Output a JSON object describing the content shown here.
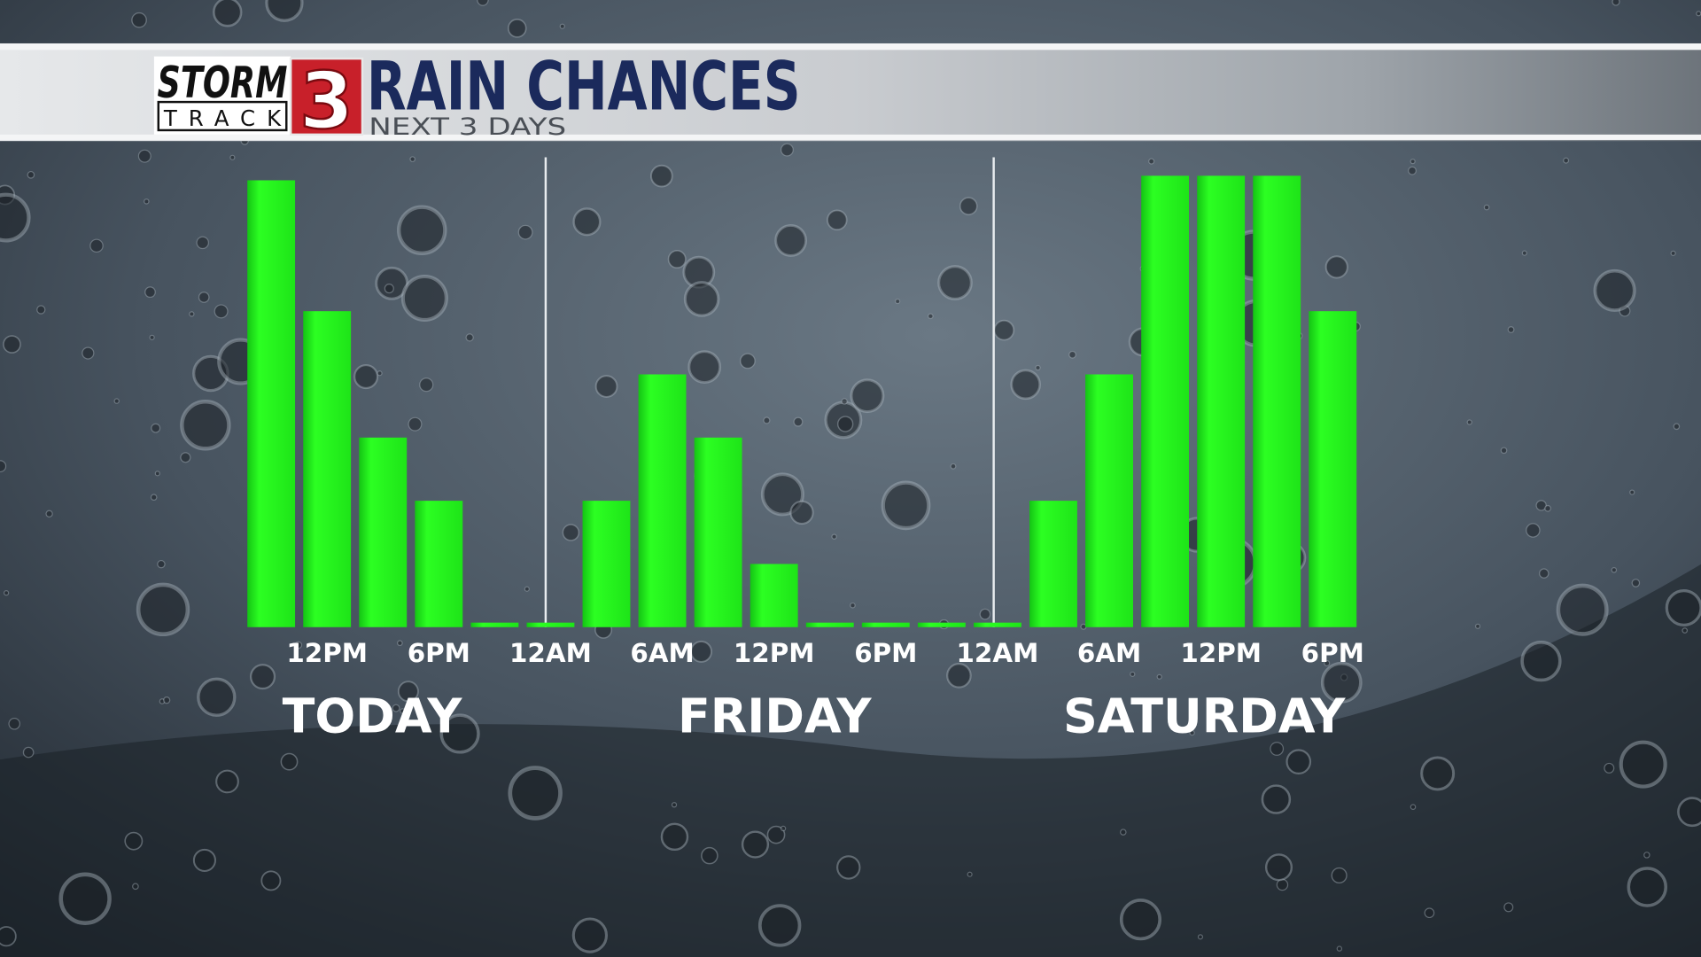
{
  "logo": {
    "line1": "STORM",
    "line2": "TRACK",
    "number": "3"
  },
  "chart_data": {
    "type": "bar",
    "title": "RAIN CHANCES",
    "subtitle": "NEXT 3 DAYS",
    "categories": [
      null,
      "12PM",
      null,
      "6PM",
      null,
      "12AM",
      null,
      "6AM",
      null,
      "12PM",
      null,
      "6PM",
      null,
      "12AM",
      null,
      "6AM",
      null,
      "12PM",
      null,
      "6PM"
    ],
    "values": [
      99,
      70,
      42,
      28,
      1,
      1,
      28,
      56,
      42,
      14,
      1,
      1,
      1,
      1,
      28,
      56,
      100,
      100,
      100,
      70
    ],
    "color": "#22f01c",
    "ylim": [
      0,
      100
    ],
    "day_labels": [
      "TODAY",
      "FRIDAY",
      "SATURDAY"
    ]
  }
}
